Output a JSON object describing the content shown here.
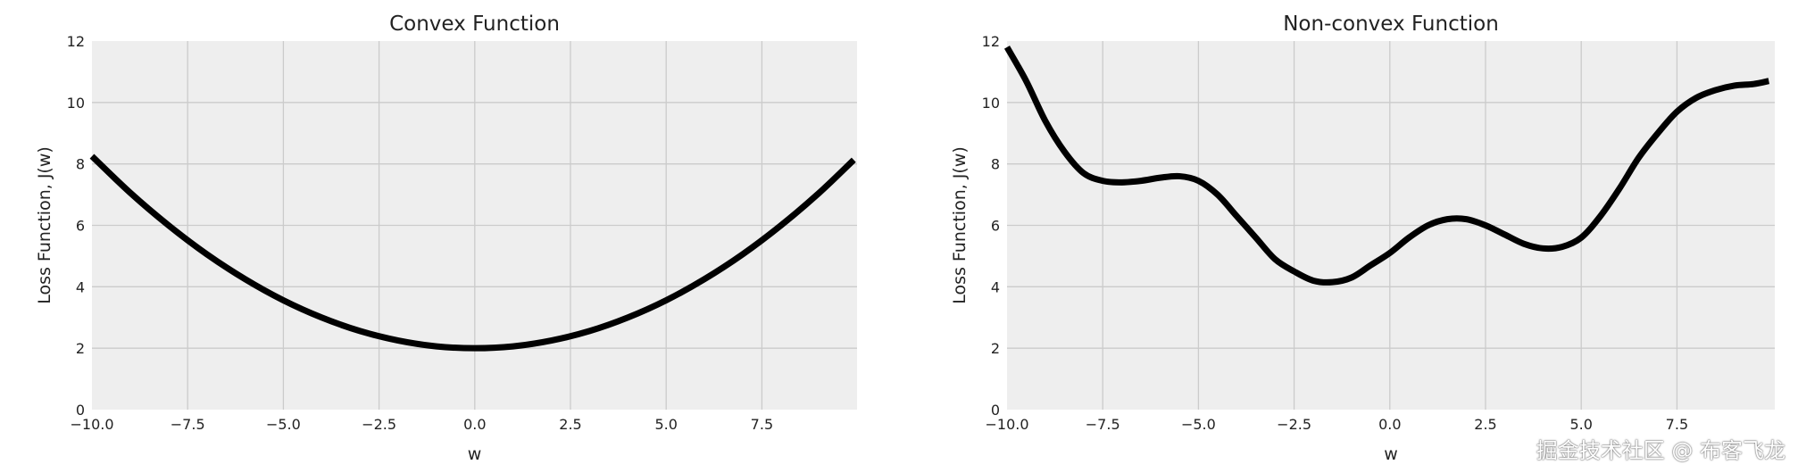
{
  "chart_data": [
    {
      "type": "line",
      "title": "Convex Function",
      "xlabel": "w",
      "ylabel": "Loss Function, J(w)",
      "xlim": [
        -10,
        9.9
      ],
      "ylim": [
        0,
        12
      ],
      "xticks": [
        "−10.0",
        "−7.5",
        "−5.0",
        "−2.5",
        "0.0",
        "2.5",
        "5.0",
        "7.5"
      ],
      "yticks": [
        "0",
        "2",
        "4",
        "6",
        "8",
        "10",
        "12"
      ],
      "grid": true,
      "background": "#eeeeee",
      "line_color": "#000000",
      "x": [
        -10,
        -9,
        -8,
        -7,
        -6,
        -5,
        -4,
        -3,
        -2,
        -1,
        0,
        1,
        2,
        3,
        4,
        5,
        6,
        7,
        8,
        9,
        9.9
      ],
      "y": [
        8.25,
        7.06,
        6.0,
        5.06,
        4.25,
        3.56,
        3.0,
        2.56,
        2.25,
        2.06,
        2.0,
        2.06,
        2.25,
        2.56,
        3.0,
        3.56,
        4.25,
        5.06,
        6.0,
        7.06,
        8.13
      ]
    },
    {
      "type": "line",
      "title": "Non-convex Function",
      "xlabel": "w",
      "ylabel": "Loss Function, J(w)",
      "xlim": [
        -10,
        9.9
      ],
      "ylim": [
        0,
        12
      ],
      "xticks": [
        "−10.0",
        "−7.5",
        "−5.0",
        "−2.5",
        "0.0",
        "2.5",
        "5.0",
        "7.5"
      ],
      "yticks": [
        "0",
        "2",
        "4",
        "6",
        "8",
        "10",
        "12"
      ],
      "grid": true,
      "background": "#eeeeee",
      "line_color": "#000000",
      "x": [
        -10,
        -9.5,
        -9,
        -8.5,
        -8,
        -7.5,
        -7,
        -6.5,
        -6,
        -5.5,
        -5,
        -4.5,
        -4,
        -3.5,
        -3,
        -2.5,
        -2,
        -1.5,
        -1,
        -0.5,
        0,
        0.5,
        1,
        1.5,
        2,
        2.5,
        3,
        3.5,
        4,
        4.5,
        5,
        5.5,
        6,
        6.5,
        7,
        7.5,
        8,
        8.5,
        9,
        9.5,
        9.9
      ],
      "y": [
        11.8,
        10.7,
        9.4,
        8.4,
        7.7,
        7.45,
        7.4,
        7.45,
        7.55,
        7.6,
        7.45,
        7.0,
        6.3,
        5.6,
        4.9,
        4.5,
        4.2,
        4.15,
        4.3,
        4.7,
        5.1,
        5.6,
        6.0,
        6.2,
        6.2,
        6.0,
        5.7,
        5.4,
        5.25,
        5.3,
        5.6,
        6.3,
        7.2,
        8.2,
        9.0,
        9.7,
        10.15,
        10.4,
        10.55,
        10.6,
        10.7
      ]
    }
  ],
  "watermark": "掘金技术社区 @ 布客飞龙"
}
